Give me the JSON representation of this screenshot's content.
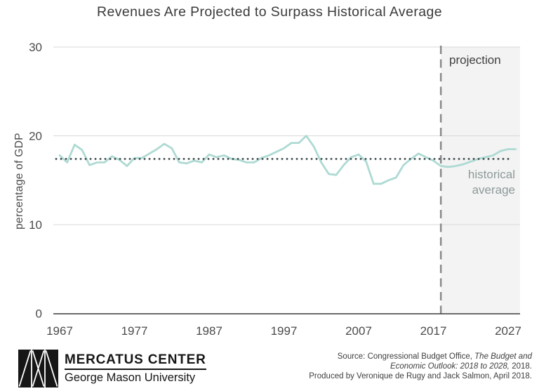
{
  "title": "Revenues Are Projected to Surpass Historical Average",
  "chart_data": {
    "type": "line",
    "title": "Revenues Are Projected to Surpass Historical Average",
    "xlabel": "",
    "ylabel": "percentage of GDP",
    "xlim": [
      1967,
      2028
    ],
    "ylim": [
      0,
      30
    ],
    "x_ticks": [
      1967,
      1977,
      1987,
      1997,
      2007,
      2017,
      2027
    ],
    "y_ticks": [
      0,
      10,
      20,
      30
    ],
    "grid": "horizontal",
    "legend": "none",
    "historical_average": 17.4,
    "projection_start": 2018,
    "annotations": {
      "projection_label": "projection",
      "historical_average_line1": "historical",
      "historical_average_line2": "average"
    },
    "series": [
      {
        "name": "revenues as percentage of GDP",
        "years": [
          1967,
          1968,
          1969,
          1970,
          1971,
          1972,
          1973,
          1974,
          1975,
          1976,
          1977,
          1978,
          1979,
          1980,
          1981,
          1982,
          1983,
          1984,
          1985,
          1986,
          1987,
          1988,
          1989,
          1990,
          1991,
          1992,
          1993,
          1994,
          1995,
          1996,
          1997,
          1998,
          1999,
          2000,
          2001,
          2002,
          2003,
          2004,
          2005,
          2006,
          2007,
          2008,
          2009,
          2010,
          2011,
          2012,
          2013,
          2014,
          2015,
          2016,
          2017,
          2018,
          2019,
          2020,
          2021,
          2022,
          2023,
          2024,
          2025,
          2026,
          2027,
          2028
        ],
        "values": [
          17.8,
          17.0,
          19.0,
          18.4,
          16.7,
          17.0,
          17.0,
          17.7,
          17.3,
          16.6,
          17.5,
          17.5,
          18.0,
          18.5,
          19.1,
          18.6,
          17.0,
          16.9,
          17.2,
          17.0,
          17.9,
          17.6,
          17.8,
          17.4,
          17.3,
          17.0,
          17.0,
          17.5,
          17.8,
          18.2,
          18.6,
          19.2,
          19.2,
          20.0,
          18.8,
          17.0,
          15.7,
          15.6,
          16.7,
          17.6,
          17.9,
          17.1,
          14.6,
          14.6,
          15.0,
          15.3,
          16.7,
          17.4,
          18.0,
          17.6,
          17.2,
          16.6,
          16.5,
          16.6,
          16.8,
          17.1,
          17.4,
          17.6,
          17.8,
          18.3,
          18.5,
          18.5
        ]
      }
    ],
    "colors": {
      "revenue_line": "#aedad3",
      "average_dots": "#3e4b4e",
      "projection_fill": "#f3f3f3",
      "projection_divider": "#8a8a8a",
      "gridline": "#d8d8d8",
      "axis": "#3c3c3c"
    }
  },
  "footer": {
    "brand": {
      "name": "MERCATUS CENTER",
      "subtitle": "George Mason University"
    },
    "source": {
      "line1_normal": "Source: Congressional Budget Office, ",
      "line1_italic": "The Budget and",
      "line2_italic": "Economic Outlook: 2018 to 2028,",
      "line2_normal": " 2018.",
      "line3": "Produced by Veronique de Rugy and Jack Salmon, April 2018."
    }
  }
}
